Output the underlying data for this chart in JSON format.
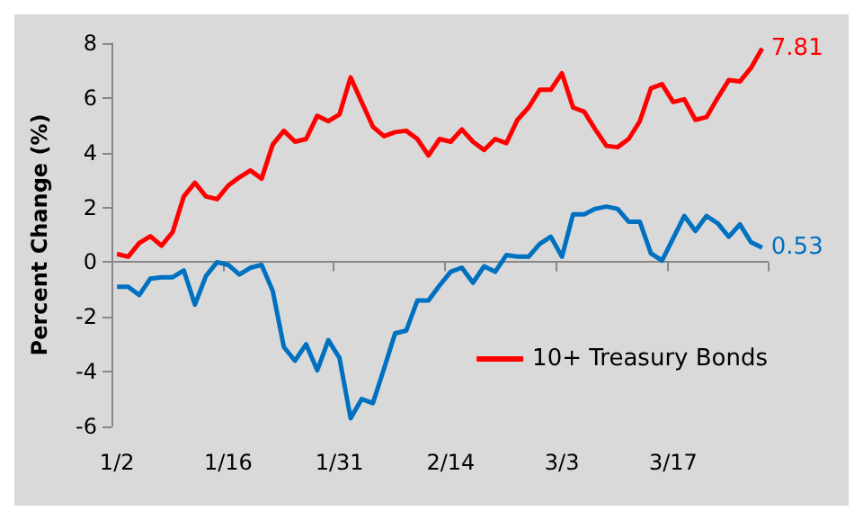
{
  "chart_data": {
    "type": "line",
    "ylabel": "Percent Change (%)",
    "categories": [
      "1/2",
      null,
      null,
      null,
      null,
      null,
      null,
      null,
      null,
      null,
      "1/16",
      null,
      null,
      null,
      null,
      null,
      null,
      null,
      null,
      null,
      "1/31",
      null,
      null,
      null,
      null,
      null,
      null,
      null,
      null,
      null,
      "2/14",
      null,
      null,
      null,
      null,
      null,
      null,
      null,
      null,
      null,
      "3/3",
      null,
      null,
      null,
      null,
      null,
      null,
      null,
      null,
      null,
      "3/17",
      null,
      null,
      null,
      null,
      null,
      null,
      null,
      null
    ],
    "series": [
      {
        "color": "#0070c0",
        "values": [
          -0.9,
          -0.9,
          -1.2,
          -0.6,
          -0.55,
          -0.55,
          -0.3,
          -1.55,
          -0.5,
          0,
          -0.1,
          -0.45,
          -0.2,
          -0.1,
          -1.05,
          -3.1,
          -3.6,
          -3.0,
          -3.95,
          -2.85,
          -3.5,
          -5.7,
          -5.0,
          -5.15,
          -3.9,
          -2.6,
          -2.5,
          -1.4,
          -1.4,
          -0.85,
          -0.35,
          -0.2,
          -0.75,
          -0.15,
          -0.35,
          0.26,
          0.2,
          0.2,
          0.67,
          0.93,
          0.2,
          1.75,
          1.75,
          1.95,
          2.03,
          1.95,
          1.48,
          1.48,
          0.32,
          0.06,
          0.87,
          1.69,
          1.14,
          1.69,
          1.42,
          0.93,
          1.38,
          0.73,
          0.53
        ],
        "value_labels": [
          null,
          null,
          null,
          null,
          null,
          null,
          null,
          null,
          null,
          null,
          null,
          null,
          null,
          null,
          null,
          null,
          null,
          null,
          null,
          null,
          null,
          null,
          null,
          null,
          null,
          null,
          null,
          null,
          null,
          null,
          null,
          null,
          null,
          null,
          null,
          null,
          null,
          null,
          null,
          null,
          null,
          null,
          null,
          null,
          null,
          null,
          null,
          null,
          null,
          null,
          null,
          null,
          null,
          null,
          null,
          null,
          null,
          null,
          "0.53"
        ]
      },
      {
        "name": "10+ Treasury Bonds",
        "color": "#ff0000",
        "values": [
          0.3,
          0.2,
          0.7,
          0.95,
          0.6,
          1.1,
          2.4,
          2.9,
          2.4,
          2.3,
          2.8,
          3.1,
          3.35,
          3.05,
          4.3,
          4.8,
          4.4,
          4.5,
          5.35,
          5.15,
          5.4,
          6.75,
          5.85,
          4.95,
          4.6,
          4.75,
          4.8,
          4.5,
          3.9,
          4.5,
          4.4,
          4.85,
          4.4,
          4.1,
          4.5,
          4.35,
          5.2,
          5.65,
          6.3,
          6.3,
          6.9,
          5.65,
          5.5,
          4.85,
          4.25,
          4.2,
          4.5,
          5.15,
          6.35,
          6.5,
          5.85,
          5.95,
          5.2,
          5.3,
          6.0,
          6.65,
          6.6,
          7.1,
          7.81
        ],
        "value_labels": [
          null,
          null,
          null,
          null,
          null,
          null,
          null,
          null,
          null,
          null,
          null,
          null,
          null,
          null,
          null,
          null,
          null,
          null,
          null,
          null,
          null,
          null,
          null,
          null,
          null,
          null,
          null,
          null,
          null,
          null,
          null,
          null,
          null,
          null,
          null,
          null,
          null,
          null,
          null,
          null,
          null,
          null,
          null,
          null,
          null,
          null,
          null,
          null,
          null,
          null,
          null,
          null,
          null,
          null,
          null,
          null,
          null,
          null,
          "7.81"
        ]
      }
    ],
    "ylim": [
      -6,
      8
    ],
    "yticks": [
      -6,
      -4,
      -2,
      0,
      2,
      4,
      6,
      8
    ],
    "legend": "bottom right",
    "marker": "none",
    "line_style": "solid"
  }
}
